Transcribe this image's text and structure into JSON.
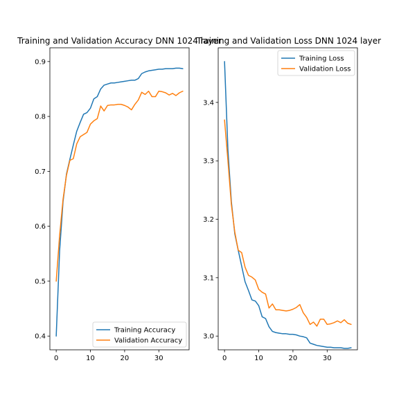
{
  "chart_data": [
    {
      "type": "line",
      "title": "Training and Validation Accuracy DNN 1024 layer",
      "xlabel": "",
      "ylabel": "",
      "xlim": [
        -1.85,
        38.85
      ],
      "ylim": [
        0.375,
        0.925
      ],
      "xticks": [
        0,
        10,
        20,
        30
      ],
      "yticks": [
        0.4,
        0.5,
        0.6,
        0.7,
        0.8,
        0.9
      ],
      "ytick_labels": [
        "0.4",
        "0.5",
        "0.6",
        "0.7",
        "0.8",
        "0.9"
      ],
      "legend_position": "lower-right",
      "grid": false,
      "x": [
        0,
        1,
        2,
        3,
        4,
        5,
        6,
        7,
        8,
        9,
        10,
        11,
        12,
        13,
        14,
        15,
        16,
        17,
        18,
        19,
        20,
        21,
        22,
        23,
        24,
        25,
        26,
        27,
        28,
        29,
        30,
        31,
        32,
        33,
        34,
        35,
        36,
        37
      ],
      "series": [
        {
          "name": "Training Accuracy",
          "color": "#1f77b4",
          "values": [
            0.4,
            0.555,
            0.645,
            0.695,
            0.722,
            0.748,
            0.773,
            0.789,
            0.804,
            0.807,
            0.815,
            0.832,
            0.836,
            0.85,
            0.857,
            0.859,
            0.861,
            0.861,
            0.862,
            0.863,
            0.864,
            0.865,
            0.866,
            0.866,
            0.869,
            0.878,
            0.881,
            0.883,
            0.884,
            0.885,
            0.886,
            0.886,
            0.887,
            0.887,
            0.887,
            0.888,
            0.888,
            0.887
          ]
        },
        {
          "name": "Validation Accuracy",
          "color": "#ff7f0e",
          "values": [
            0.5,
            0.583,
            0.649,
            0.693,
            0.72,
            0.723,
            0.75,
            0.763,
            0.767,
            0.771,
            0.786,
            0.792,
            0.796,
            0.819,
            0.81,
            0.82,
            0.821,
            0.821,
            0.822,
            0.822,
            0.82,
            0.817,
            0.812,
            0.822,
            0.83,
            0.844,
            0.84,
            0.846,
            0.836,
            0.836,
            0.846,
            0.845,
            0.843,
            0.839,
            0.842,
            0.838,
            0.843,
            0.846
          ]
        }
      ]
    },
    {
      "type": "line",
      "title": "Training and Validation Loss DNN 1024 layer",
      "xlabel": "",
      "ylabel": "",
      "xlim": [
        -1.85,
        38.85
      ],
      "ylim": [
        2.9765,
        3.4935
      ],
      "xticks": [
        0,
        10,
        20,
        30
      ],
      "yticks": [
        3.0,
        3.1,
        3.2,
        3.3,
        3.4
      ],
      "ytick_labels": [
        "3.0",
        "3.1",
        "3.2",
        "3.3",
        "3.4"
      ],
      "legend_position": "upper-right",
      "grid": false,
      "x": [
        0,
        1,
        2,
        3,
        4,
        5,
        6,
        7,
        8,
        9,
        10,
        11,
        12,
        13,
        14,
        15,
        16,
        17,
        18,
        19,
        20,
        21,
        22,
        23,
        24,
        25,
        26,
        27,
        28,
        29,
        30,
        31,
        32,
        33,
        34,
        35,
        36,
        37
      ],
      "series": [
        {
          "name": "Training Loss",
          "color": "#1f77b4",
          "values": [
            3.47,
            3.318,
            3.23,
            3.175,
            3.147,
            3.12,
            3.093,
            3.078,
            3.062,
            3.06,
            3.052,
            3.033,
            3.03,
            3.016,
            3.008,
            3.006,
            3.005,
            3.004,
            3.004,
            3.003,
            3.003,
            3.002,
            3.0,
            2.999,
            2.997,
            2.988,
            2.986,
            2.984,
            2.983,
            2.982,
            2.981,
            2.981,
            2.98,
            2.98,
            2.98,
            2.979,
            2.979,
            2.98
          ]
        },
        {
          "name": "Validation Loss",
          "color": "#ff7f0e",
          "values": [
            3.37,
            3.3,
            3.225,
            3.178,
            3.147,
            3.143,
            3.118,
            3.104,
            3.101,
            3.096,
            3.08,
            3.075,
            3.072,
            3.048,
            3.055,
            3.045,
            3.045,
            3.044,
            3.043,
            3.044,
            3.046,
            3.049,
            3.054,
            3.04,
            3.032,
            3.02,
            3.024,
            3.017,
            3.029,
            3.029,
            3.02,
            3.021,
            3.023,
            3.026,
            3.023,
            3.028,
            3.022,
            3.02
          ]
        }
      ]
    }
  ]
}
